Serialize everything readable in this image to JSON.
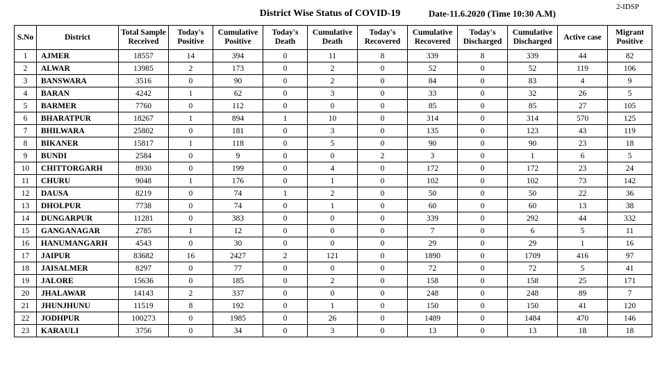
{
  "header": {
    "title": "District Wise Status of  COVID-19",
    "date": "Date-11.6.2020 (Time 10:30 A.M)",
    "code": "2-IDSP"
  },
  "table": {
    "columns": [
      "S.No",
      "District",
      "Total Sample\nReceived",
      "Today's\nPositive",
      "Cumulative\nPositive",
      "Today's\nDeath",
      "Cumulative\nDeath",
      "Today's\nRecovered",
      "Cumulative\nRecovered",
      "Today's\nDischarged",
      "Cumulative\nDischarged",
      "Active  case",
      "Migrant\nPositive"
    ],
    "rows": [
      [
        1,
        "AJMER",
        18557,
        14,
        394,
        0,
        11,
        8,
        339,
        8,
        339,
        44,
        82
      ],
      [
        2,
        "ALWAR",
        13985,
        2,
        173,
        0,
        2,
        0,
        52,
        0,
        52,
        119,
        106
      ],
      [
        3,
        "BANSWARA",
        3516,
        0,
        90,
        0,
        2,
        0,
        84,
        0,
        83,
        4,
        9
      ],
      [
        4,
        "BARAN",
        4242,
        1,
        62,
        0,
        3,
        0,
        33,
        0,
        32,
        26,
        5
      ],
      [
        5,
        "BARMER",
        7760,
        0,
        112,
        0,
        0,
        0,
        85,
        0,
        85,
        27,
        105
      ],
      [
        6,
        "BHARATPUR",
        18267,
        1,
        894,
        1,
        10,
        0,
        314,
        0,
        314,
        570,
        125
      ],
      [
        7,
        "BHILWARA",
        25802,
        0,
        181,
        0,
        3,
        0,
        135,
        0,
        123,
        43,
        119
      ],
      [
        8,
        "BIKANER",
        15817,
        1,
        118,
        0,
        5,
        0,
        90,
        0,
        90,
        23,
        18
      ],
      [
        9,
        "BUNDI",
        2584,
        0,
        9,
        0,
        0,
        2,
        3,
        0,
        1,
        6,
        5
      ],
      [
        10,
        "CHITTORGARH",
        8930,
        0,
        199,
        0,
        4,
        0,
        172,
        0,
        172,
        23,
        24
      ],
      [
        11,
        "CHURU",
        9048,
        1,
        176,
        0,
        1,
        0,
        102,
        0,
        102,
        73,
        142
      ],
      [
        12,
        "DAUSA",
        8219,
        0,
        74,
        1,
        2,
        0,
        50,
        0,
        50,
        22,
        36
      ],
      [
        13,
        "DHOLPUR",
        7738,
        0,
        74,
        0,
        1,
        0,
        60,
        0,
        60,
        13,
        38
      ],
      [
        14,
        "DUNGARPUR",
        11281,
        0,
        383,
        0,
        0,
        0,
        339,
        0,
        292,
        44,
        332
      ],
      [
        15,
        "GANGANAGAR",
        2785,
        1,
        12,
        0,
        0,
        0,
        7,
        0,
        6,
        5,
        11
      ],
      [
        16,
        "HANUMANGARH",
        4543,
        0,
        30,
        0,
        0,
        0,
        29,
        0,
        29,
        1,
        16
      ],
      [
        17,
        "JAIPUR",
        83682,
        16,
        2427,
        2,
        121,
        0,
        1890,
        0,
        1709,
        416,
        97
      ],
      [
        18,
        "JAISALMER",
        8297,
        0,
        77,
        0,
        0,
        0,
        72,
        0,
        72,
        5,
        41
      ],
      [
        19,
        "JALORE",
        15636,
        0,
        185,
        0,
        2,
        0,
        158,
        0,
        158,
        25,
        171
      ],
      [
        20,
        "JHALAWAR",
        14143,
        2,
        337,
        0,
        0,
        0,
        248,
        0,
        248,
        89,
        7
      ],
      [
        21,
        "JHUNJHUNU",
        11519,
        8,
        192,
        0,
        1,
        0,
        150,
        0,
        150,
        41,
        120
      ],
      [
        22,
        "JODHPUR",
        100273,
        0,
        1985,
        0,
        26,
        0,
        1489,
        0,
        1484,
        470,
        146
      ],
      [
        23,
        "KARAULI",
        3756,
        0,
        34,
        0,
        3,
        0,
        13,
        0,
        13,
        18,
        18
      ]
    ]
  }
}
